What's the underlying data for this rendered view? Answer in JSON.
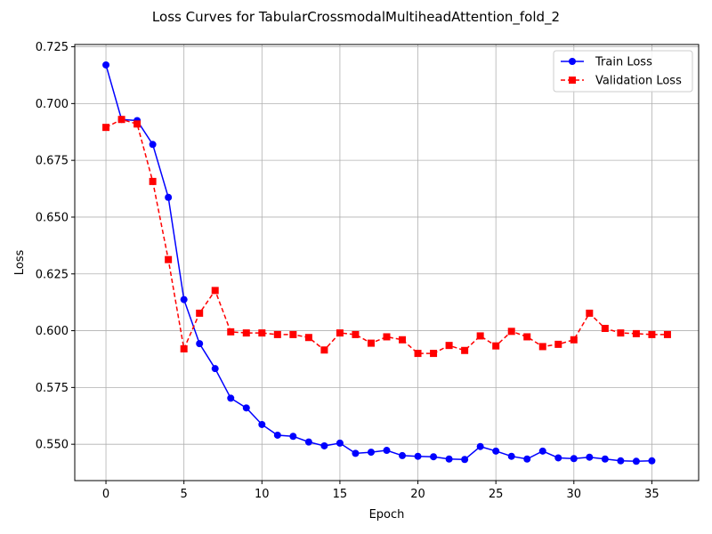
{
  "chart_data": {
    "type": "line",
    "title": "Loss Curves for TabularCrossmodalMultiheadAttention_fold_2",
    "xlabel": "Epoch",
    "ylabel": "Loss",
    "xlim": [
      -2,
      38
    ],
    "ylim": [
      0.534,
      0.726
    ],
    "x_ticks": [
      0,
      5,
      10,
      15,
      20,
      25,
      30,
      35
    ],
    "y_ticks": [
      0.55,
      0.575,
      0.6,
      0.625,
      0.65,
      0.675,
      0.7,
      0.725
    ],
    "grid": true,
    "legend_position": "top-right",
    "series": [
      {
        "name": "Train Loss",
        "color": "#0000ff",
        "line_style": "solid",
        "marker": "circle",
        "x": [
          0,
          1,
          2,
          3,
          4,
          5,
          6,
          7,
          8,
          9,
          10,
          11,
          12,
          13,
          14,
          15,
          16,
          17,
          18,
          19,
          20,
          21,
          22,
          23,
          24,
          25,
          26,
          27,
          28,
          29,
          30,
          31,
          32,
          33,
          34,
          35
        ],
        "values": [
          0.717,
          0.693,
          0.6925,
          0.682,
          0.6587,
          0.6137,
          0.5943,
          0.5833,
          0.5703,
          0.566,
          0.5587,
          0.554,
          0.5535,
          0.551,
          0.5493,
          0.5505,
          0.546,
          0.5465,
          0.5473,
          0.545,
          0.5447,
          0.5445,
          0.5435,
          0.5433,
          0.549,
          0.547,
          0.5447,
          0.5435,
          0.547,
          0.544,
          0.5437,
          0.5443,
          0.5435,
          0.5427,
          0.5425,
          0.5427
        ]
      },
      {
        "name": "Validation Loss",
        "color": "#ff0000",
        "line_style": "dashed",
        "marker": "square",
        "x": [
          0,
          1,
          2,
          3,
          4,
          5,
          6,
          7,
          8,
          9,
          10,
          11,
          12,
          13,
          14,
          15,
          16,
          17,
          18,
          19,
          20,
          21,
          22,
          23,
          24,
          25,
          26,
          27,
          28,
          29,
          30,
          31,
          32,
          33,
          34,
          35,
          36
        ],
        "values": [
          0.6895,
          0.693,
          0.691,
          0.6657,
          0.6313,
          0.592,
          0.6077,
          0.6177,
          0.5995,
          0.599,
          0.599,
          0.5983,
          0.5983,
          0.597,
          0.5915,
          0.599,
          0.5983,
          0.5945,
          0.5973,
          0.596,
          0.59,
          0.59,
          0.5935,
          0.5913,
          0.5977,
          0.5933,
          0.5997,
          0.5973,
          0.593,
          0.594,
          0.596,
          0.6077,
          0.601,
          0.599,
          0.5987,
          0.5983,
          0.5983
        ]
      }
    ]
  }
}
